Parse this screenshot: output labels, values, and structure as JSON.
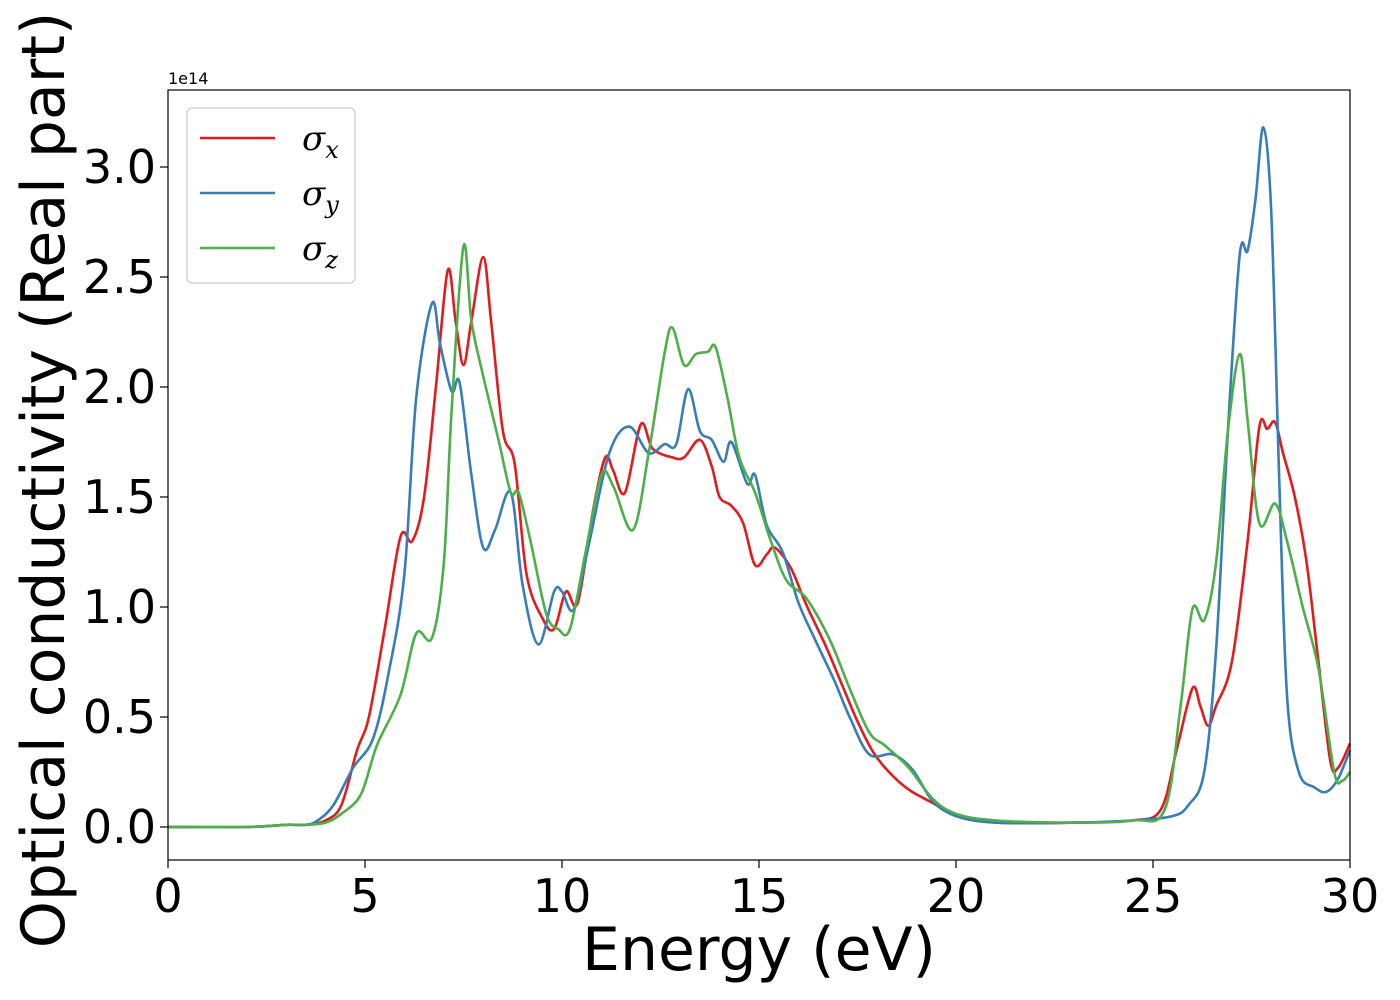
{
  "chart_data": {
    "type": "line",
    "title": "",
    "xlabel": "Energy (eV)",
    "ylabel": "Optical conductivity (Real part)",
    "y_offset_label": "1e14",
    "xlim": [
      0,
      30
    ],
    "ylim": [
      -0.15,
      3.35
    ],
    "x_ticks": [
      0,
      5,
      10,
      15,
      20,
      25,
      30
    ],
    "x_tick_labels": [
      "0",
      "5",
      "10",
      "15",
      "20",
      "25",
      "30"
    ],
    "y_ticks": [
      0.0,
      0.5,
      1.0,
      1.5,
      2.0,
      2.5,
      3.0
    ],
    "y_tick_labels": [
      "0.0",
      "0.5",
      "1.0",
      "1.5",
      "2.0",
      "2.5",
      "3.0"
    ],
    "grid": false,
    "legend_position": "top-left",
    "series": [
      {
        "name": "σx",
        "symbol": "σ",
        "subscript": "x",
        "color": "#e41a1c",
        "points": [
          [
            0,
            0
          ],
          [
            2,
            0
          ],
          [
            3,
            0.01
          ],
          [
            3.5,
            0.01
          ],
          [
            4,
            0.03
          ],
          [
            4.4,
            0.1
          ],
          [
            4.8,
            0.35
          ],
          [
            5.1,
            0.5
          ],
          [
            5.5,
            0.9
          ],
          [
            5.9,
            1.32
          ],
          [
            6.2,
            1.3
          ],
          [
            6.5,
            1.5
          ],
          [
            6.8,
            2.0
          ],
          [
            7.1,
            2.53
          ],
          [
            7.3,
            2.3
          ],
          [
            7.5,
            2.1
          ],
          [
            7.7,
            2.3
          ],
          [
            8.0,
            2.59
          ],
          [
            8.2,
            2.3
          ],
          [
            8.5,
            1.8
          ],
          [
            8.8,
            1.65
          ],
          [
            9.1,
            1.15
          ],
          [
            9.5,
            0.95
          ],
          [
            9.8,
            0.9
          ],
          [
            10.1,
            1.07
          ],
          [
            10.4,
            1.02
          ],
          [
            10.8,
            1.45
          ],
          [
            11.1,
            1.68
          ],
          [
            11.3,
            1.62
          ],
          [
            11.6,
            1.52
          ],
          [
            12.0,
            1.83
          ],
          [
            12.3,
            1.72
          ],
          [
            12.8,
            1.68
          ],
          [
            13.1,
            1.68
          ],
          [
            13.5,
            1.76
          ],
          [
            13.8,
            1.64
          ],
          [
            14.0,
            1.5
          ],
          [
            14.3,
            1.46
          ],
          [
            14.6,
            1.38
          ],
          [
            14.9,
            1.19
          ],
          [
            15.2,
            1.24
          ],
          [
            15.4,
            1.27
          ],
          [
            15.8,
            1.18
          ],
          [
            16.2,
            1.01
          ],
          [
            16.7,
            0.82
          ],
          [
            17.1,
            0.65
          ],
          [
            17.5,
            0.48
          ],
          [
            17.9,
            0.34
          ],
          [
            18.3,
            0.25
          ],
          [
            18.8,
            0.17
          ],
          [
            19.4,
            0.11
          ],
          [
            20,
            0.05
          ],
          [
            21,
            0.02
          ],
          [
            23,
            0.02
          ],
          [
            24.5,
            0.03
          ],
          [
            25.2,
            0.08
          ],
          [
            25.6,
            0.35
          ],
          [
            26.0,
            0.63
          ],
          [
            26.2,
            0.55
          ],
          [
            26.4,
            0.46
          ],
          [
            26.6,
            0.55
          ],
          [
            27.0,
            0.75
          ],
          [
            27.4,
            1.3
          ],
          [
            27.7,
            1.82
          ],
          [
            27.9,
            1.81
          ],
          [
            28.1,
            1.84
          ],
          [
            28.3,
            1.7
          ],
          [
            28.6,
            1.5
          ],
          [
            28.9,
            1.2
          ],
          [
            29.2,
            0.75
          ],
          [
            29.5,
            0.3
          ],
          [
            29.7,
            0.27
          ],
          [
            30,
            0.38
          ]
        ]
      },
      {
        "name": "σy",
        "symbol": "σ",
        "subscript": "y",
        "color": "#377eb8",
        "points": [
          [
            0,
            0
          ],
          [
            2,
            0
          ],
          [
            3,
            0.01
          ],
          [
            3.5,
            0.01
          ],
          [
            3.8,
            0.03
          ],
          [
            4.2,
            0.1
          ],
          [
            4.7,
            0.27
          ],
          [
            5.2,
            0.4
          ],
          [
            5.6,
            0.7
          ],
          [
            6.0,
            1.15
          ],
          [
            6.3,
            1.95
          ],
          [
            6.7,
            2.38
          ],
          [
            6.9,
            2.2
          ],
          [
            7.2,
            1.98
          ],
          [
            7.4,
            2.02
          ],
          [
            7.7,
            1.6
          ],
          [
            8.0,
            1.27
          ],
          [
            8.3,
            1.35
          ],
          [
            8.7,
            1.52
          ],
          [
            9.0,
            1.1
          ],
          [
            9.4,
            0.83
          ],
          [
            9.8,
            1.07
          ],
          [
            10.0,
            1.07
          ],
          [
            10.3,
            0.99
          ],
          [
            10.7,
            1.3
          ],
          [
            11.2,
            1.7
          ],
          [
            11.7,
            1.82
          ],
          [
            12.2,
            1.7
          ],
          [
            12.6,
            1.74
          ],
          [
            12.9,
            1.74
          ],
          [
            13.2,
            1.99
          ],
          [
            13.5,
            1.8
          ],
          [
            13.8,
            1.76
          ],
          [
            14.1,
            1.66
          ],
          [
            14.3,
            1.75
          ],
          [
            14.7,
            1.56
          ],
          [
            14.9,
            1.6
          ],
          [
            15.2,
            1.37
          ],
          [
            15.6,
            1.25
          ],
          [
            16.0,
            1.02
          ],
          [
            16.4,
            0.86
          ],
          [
            16.9,
            0.67
          ],
          [
            17.3,
            0.5
          ],
          [
            17.8,
            0.33
          ],
          [
            18.4,
            0.33
          ],
          [
            18.9,
            0.26
          ],
          [
            19.4,
            0.12
          ],
          [
            20,
            0.05
          ],
          [
            21,
            0.02
          ],
          [
            23,
            0.02
          ],
          [
            24.5,
            0.03
          ],
          [
            25.5,
            0.05
          ],
          [
            25.9,
            0.1
          ],
          [
            26.3,
            0.25
          ],
          [
            26.6,
            0.8
          ],
          [
            26.9,
            1.8
          ],
          [
            27.2,
            2.6
          ],
          [
            27.4,
            2.62
          ],
          [
            27.6,
            2.85
          ],
          [
            27.8,
            3.18
          ],
          [
            28.0,
            2.8
          ],
          [
            28.2,
            1.6
          ],
          [
            28.4,
            0.6
          ],
          [
            28.7,
            0.25
          ],
          [
            29.1,
            0.18
          ],
          [
            29.4,
            0.16
          ],
          [
            29.7,
            0.22
          ],
          [
            30,
            0.35
          ]
        ]
      },
      {
        "name": "σz",
        "symbol": "σ",
        "subscript": "z",
        "color": "#4daf4a",
        "points": [
          [
            0,
            0
          ],
          [
            2,
            0
          ],
          [
            3,
            0.01
          ],
          [
            3.5,
            0.01
          ],
          [
            4.0,
            0.02
          ],
          [
            4.4,
            0.06
          ],
          [
            4.9,
            0.15
          ],
          [
            5.3,
            0.37
          ],
          [
            5.9,
            0.6
          ],
          [
            6.3,
            0.88
          ],
          [
            6.7,
            0.86
          ],
          [
            7.0,
            1.2
          ],
          [
            7.2,
            1.9
          ],
          [
            7.5,
            2.64
          ],
          [
            7.7,
            2.3
          ],
          [
            8.0,
            2.05
          ],
          [
            8.4,
            1.75
          ],
          [
            8.7,
            1.52
          ],
          [
            8.9,
            1.52
          ],
          [
            9.2,
            1.3
          ],
          [
            9.6,
            0.97
          ],
          [
            9.9,
            0.9
          ],
          [
            10.2,
            0.9
          ],
          [
            10.6,
            1.25
          ],
          [
            11.0,
            1.6
          ],
          [
            11.3,
            1.55
          ],
          [
            11.8,
            1.35
          ],
          [
            12.2,
            1.7
          ],
          [
            12.6,
            2.15
          ],
          [
            12.8,
            2.27
          ],
          [
            13.1,
            2.1
          ],
          [
            13.4,
            2.15
          ],
          [
            13.7,
            2.16
          ],
          [
            13.9,
            2.18
          ],
          [
            14.2,
            1.95
          ],
          [
            14.5,
            1.68
          ],
          [
            14.9,
            1.52
          ],
          [
            15.3,
            1.3
          ],
          [
            15.7,
            1.12
          ],
          [
            16.2,
            1.04
          ],
          [
            16.8,
            0.85
          ],
          [
            17.3,
            0.63
          ],
          [
            17.8,
            0.43
          ],
          [
            18.2,
            0.37
          ],
          [
            18.8,
            0.27
          ],
          [
            19.4,
            0.13
          ],
          [
            20,
            0.06
          ],
          [
            21,
            0.03
          ],
          [
            23,
            0.02
          ],
          [
            24.5,
            0.03
          ],
          [
            25.3,
            0.08
          ],
          [
            25.7,
            0.55
          ],
          [
            26.0,
            0.99
          ],
          [
            26.3,
            0.94
          ],
          [
            26.6,
            1.2
          ],
          [
            26.9,
            1.8
          ],
          [
            27.2,
            2.15
          ],
          [
            27.4,
            1.85
          ],
          [
            27.7,
            1.38
          ],
          [
            28.1,
            1.47
          ],
          [
            28.4,
            1.3
          ],
          [
            28.8,
            1.0
          ],
          [
            29.2,
            0.72
          ],
          [
            29.6,
            0.25
          ],
          [
            29.8,
            0.21
          ],
          [
            30,
            0.25
          ]
        ]
      }
    ]
  }
}
